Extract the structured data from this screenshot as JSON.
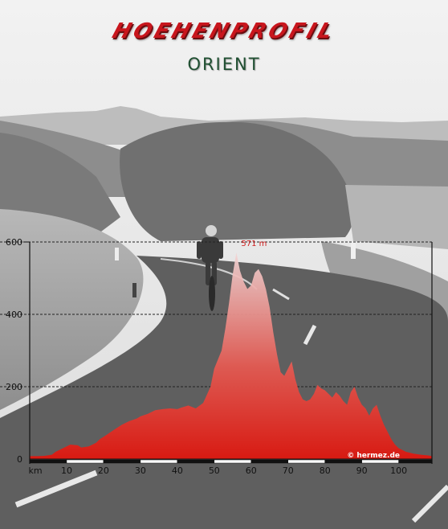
{
  "header": {
    "title": "HOEHENPROFIL",
    "subtitle": "ORIENT"
  },
  "colors": {
    "title": "#c8161d",
    "subtitle": "#1f4f31",
    "area_top": "#f2d5d5",
    "area_bottom": "#d81a12",
    "max_label": "#d02020"
  },
  "chart_data": {
    "type": "area",
    "title": "HOEHENPROFIL",
    "subtitle": "ORIENT",
    "xlabel": "km",
    "ylabel": "",
    "xlim": [
      0,
      109
    ],
    "ylim": [
      0,
      600
    ],
    "grid": true,
    "x_ticks": [
      "10",
      "20",
      "30",
      "40",
      "50",
      "60",
      "70",
      "80",
      "90",
      "100"
    ],
    "y_ticks": [
      "0",
      "200",
      "400",
      "600"
    ],
    "max_label": "571 m",
    "max_x": 56,
    "credit": "© hermez.de",
    "x": [
      0,
      2,
      4,
      6,
      7,
      9,
      11,
      13,
      14,
      16,
      18,
      19,
      21,
      23,
      25,
      27,
      29,
      30,
      32,
      34,
      36,
      38,
      40,
      41,
      43,
      45,
      47,
      49,
      50,
      52,
      53,
      54,
      55,
      56,
      57,
      58,
      59,
      60,
      61,
      62,
      63,
      64,
      65,
      66,
      67,
      68,
      69,
      70,
      71,
      72,
      73,
      74,
      75,
      76,
      77,
      78,
      79,
      80,
      81,
      82,
      83,
      84,
      85,
      86,
      87,
      88,
      89,
      90,
      91,
      92,
      93,
      94,
      95,
      96,
      97,
      98,
      99,
      100,
      102,
      104,
      106,
      108,
      109
    ],
    "values": [
      8,
      8,
      9,
      12,
      20,
      30,
      40,
      38,
      32,
      35,
      45,
      55,
      68,
      82,
      95,
      105,
      112,
      118,
      125,
      135,
      138,
      140,
      138,
      142,
      148,
      140,
      155,
      200,
      250,
      300,
      360,
      430,
      510,
      571,
      520,
      490,
      470,
      480,
      515,
      525,
      505,
      470,
      420,
      350,
      290,
      240,
      230,
      250,
      270,
      220,
      185,
      165,
      160,
      165,
      180,
      205,
      195,
      190,
      180,
      170,
      185,
      175,
      160,
      150,
      185,
      200,
      170,
      150,
      140,
      120,
      140,
      150,
      120,
      95,
      75,
      55,
      40,
      30,
      20,
      15,
      12,
      10,
      8
    ]
  }
}
